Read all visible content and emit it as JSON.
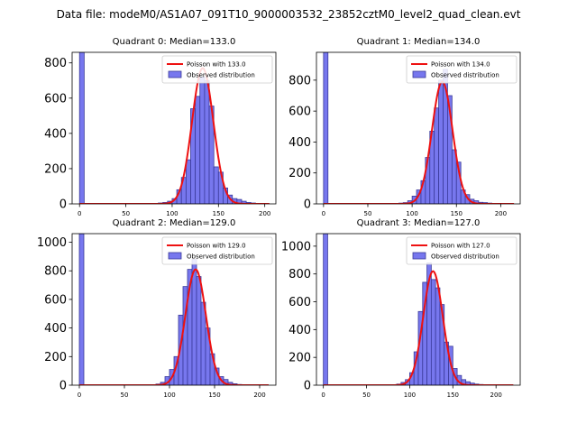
{
  "figure": {
    "suptitle": "Data file: modeM0/AS1A07_091T10_9000003532_23852cztM0_level2_quad_clean.evt"
  },
  "colors": {
    "bar_fill": "#7777ee",
    "bar_edge": "#3a3a9a",
    "line": "#ee1111"
  },
  "chart_data": [
    {
      "type": "bar",
      "title": "Quadrant 0: Median=133.0",
      "xlim": [
        -8,
        212
      ],
      "ylim": [
        0,
        860
      ],
      "xticks": [
        0,
        50,
        100,
        150,
        200
      ],
      "yticks": [
        0,
        200,
        400,
        600,
        800
      ],
      "bin_width": 5,
      "bars": [
        {
          "x": 0,
          "y": 860
        },
        {
          "x": 85,
          "y": 5
        },
        {
          "x": 90,
          "y": 8
        },
        {
          "x": 95,
          "y": 15
        },
        {
          "x": 100,
          "y": 30
        },
        {
          "x": 105,
          "y": 80
        },
        {
          "x": 110,
          "y": 150
        },
        {
          "x": 115,
          "y": 250
        },
        {
          "x": 120,
          "y": 540
        },
        {
          "x": 125,
          "y": 610
        },
        {
          "x": 130,
          "y": 720
        },
        {
          "x": 135,
          "y": 700
        },
        {
          "x": 140,
          "y": 555
        },
        {
          "x": 145,
          "y": 210
        },
        {
          "x": 150,
          "y": 180
        },
        {
          "x": 155,
          "y": 90
        },
        {
          "x": 160,
          "y": 50
        },
        {
          "x": 165,
          "y": 30
        },
        {
          "x": 170,
          "y": 25
        },
        {
          "x": 175,
          "y": 15
        },
        {
          "x": 180,
          "y": 8
        },
        {
          "x": 185,
          "y": 5
        },
        {
          "x": 190,
          "y": 3
        }
      ],
      "curve": {
        "mu": 133,
        "peak": 770,
        "xmax": 205
      },
      "legend": {
        "line": "Poisson with 133.0",
        "patch": "Observed distribution"
      }
    },
    {
      "type": "bar",
      "title": "Quadrant 1: Median=134.0",
      "xlim": [
        -8,
        222
      ],
      "ylim": [
        0,
        980
      ],
      "xticks": [
        0,
        50,
        100,
        150,
        200
      ],
      "yticks": [
        0,
        200,
        400,
        600,
        800
      ],
      "bin_width": 5,
      "bars": [
        {
          "x": 0,
          "y": 980
        },
        {
          "x": 85,
          "y": 5
        },
        {
          "x": 90,
          "y": 8
        },
        {
          "x": 95,
          "y": 20
        },
        {
          "x": 100,
          "y": 50
        },
        {
          "x": 105,
          "y": 90
        },
        {
          "x": 110,
          "y": 150
        },
        {
          "x": 115,
          "y": 300
        },
        {
          "x": 120,
          "y": 470
        },
        {
          "x": 125,
          "y": 620
        },
        {
          "x": 130,
          "y": 800
        },
        {
          "x": 135,
          "y": 870
        },
        {
          "x": 140,
          "y": 700
        },
        {
          "x": 145,
          "y": 350
        },
        {
          "x": 150,
          "y": 270
        },
        {
          "x": 155,
          "y": 90
        },
        {
          "x": 160,
          "y": 60
        },
        {
          "x": 165,
          "y": 30
        },
        {
          "x": 170,
          "y": 20
        },
        {
          "x": 175,
          "y": 10
        },
        {
          "x": 180,
          "y": 8
        },
        {
          "x": 185,
          "y": 5
        },
        {
          "x": 190,
          "y": 3
        }
      ],
      "curve": {
        "mu": 134,
        "peak": 790,
        "xmax": 215
      },
      "legend": {
        "line": "Poisson with 134.0",
        "patch": "Observed distribution"
      }
    },
    {
      "type": "bar",
      "title": "Quadrant 2: Median=129.0",
      "xlim": [
        -8,
        218
      ],
      "ylim": [
        0,
        1060
      ],
      "xticks": [
        0,
        50,
        100,
        150,
        200
      ],
      "yticks": [
        0,
        200,
        400,
        600,
        800,
        1000
      ],
      "bin_width": 5,
      "bars": [
        {
          "x": 0,
          "y": 1060
        },
        {
          "x": 85,
          "y": 8
        },
        {
          "x": 90,
          "y": 20
        },
        {
          "x": 95,
          "y": 60
        },
        {
          "x": 100,
          "y": 110
        },
        {
          "x": 105,
          "y": 200
        },
        {
          "x": 110,
          "y": 490
        },
        {
          "x": 115,
          "y": 690
        },
        {
          "x": 120,
          "y": 810
        },
        {
          "x": 125,
          "y": 880
        },
        {
          "x": 130,
          "y": 760
        },
        {
          "x": 135,
          "y": 580
        },
        {
          "x": 140,
          "y": 400
        },
        {
          "x": 145,
          "y": 220
        },
        {
          "x": 150,
          "y": 120
        },
        {
          "x": 155,
          "y": 60
        },
        {
          "x": 160,
          "y": 40
        },
        {
          "x": 165,
          "y": 20
        },
        {
          "x": 170,
          "y": 10
        },
        {
          "x": 175,
          "y": 5
        },
        {
          "x": 180,
          "y": 3
        }
      ],
      "curve": {
        "mu": 129,
        "peak": 810,
        "xmax": 210
      },
      "legend": {
        "line": "Poisson with 129.0",
        "patch": "Observed distribution"
      }
    },
    {
      "type": "bar",
      "title": "Quadrant 3: Median=127.0",
      "xlim": [
        -8,
        228
      ],
      "ylim": [
        0,
        1090
      ],
      "xticks": [
        0,
        50,
        100,
        150,
        200
      ],
      "yticks": [
        0,
        200,
        400,
        600,
        800,
        1000
      ],
      "bin_width": 5,
      "bars": [
        {
          "x": 0,
          "y": 1090
        },
        {
          "x": 85,
          "y": 8
        },
        {
          "x": 90,
          "y": 20
        },
        {
          "x": 95,
          "y": 40
        },
        {
          "x": 100,
          "y": 90
        },
        {
          "x": 105,
          "y": 240
        },
        {
          "x": 110,
          "y": 530
        },
        {
          "x": 115,
          "y": 740
        },
        {
          "x": 120,
          "y": 880
        },
        {
          "x": 125,
          "y": 760
        },
        {
          "x": 130,
          "y": 700
        },
        {
          "x": 135,
          "y": 580
        },
        {
          "x": 140,
          "y": 310
        },
        {
          "x": 145,
          "y": 280
        },
        {
          "x": 150,
          "y": 120
        },
        {
          "x": 155,
          "y": 70
        },
        {
          "x": 160,
          "y": 40
        },
        {
          "x": 165,
          "y": 25
        },
        {
          "x": 170,
          "y": 15
        },
        {
          "x": 175,
          "y": 8
        },
        {
          "x": 180,
          "y": 5
        },
        {
          "x": 185,
          "y": 3
        }
      ],
      "curve": {
        "mu": 127,
        "peak": 820,
        "xmax": 220
      },
      "legend": {
        "line": "Poisson with 127.0",
        "patch": "Observed distribution"
      }
    }
  ]
}
